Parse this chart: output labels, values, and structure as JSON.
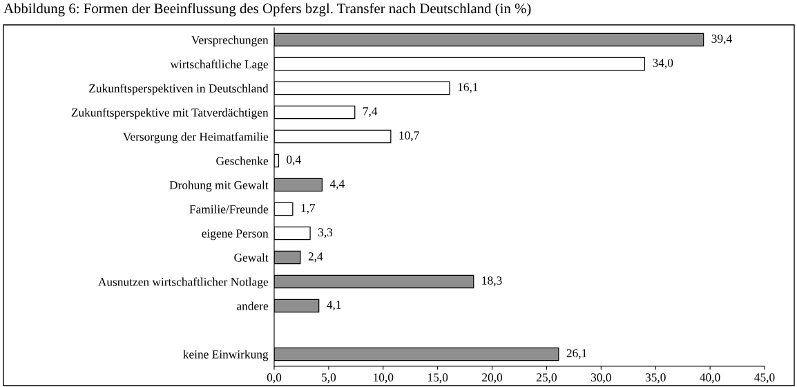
{
  "chart_data": {
    "type": "bar",
    "orientation": "horizontal",
    "title": "Abbildung 6: Formen der Beeinflussung des Opfers bzgl. Transfer nach Deutschland (in %)",
    "categories": [
      "Versprechungen",
      "wirtschaftliche Lage",
      "Zukunftsperspektiven in Deutschland",
      "Zukunftsperspektive mit Tatverdächtigen",
      "Versorgung der Heimatfamilie",
      "Geschenke",
      "Drohung mit Gewalt",
      "Familie/Freunde",
      "eigene Person",
      "Gewalt",
      "Ausnutzen wirtschaftlicher Notlage",
      "andere",
      null,
      "keine Einwirkung"
    ],
    "values": [
      39.4,
      34.0,
      16.1,
      7.4,
      10.7,
      0.4,
      4.4,
      1.7,
      3.3,
      2.4,
      18.3,
      4.1,
      null,
      26.1
    ],
    "value_labels": [
      "39,4",
      "34,0",
      "16,1",
      "7,4",
      "10,7",
      "0,4",
      "4,4",
      "1,7",
      "3,3",
      "2,4",
      "18,3",
      "4,1",
      null,
      "26,1"
    ],
    "colors": [
      "#8f8f8f",
      "#ffffff",
      "#ffffff",
      "#ffffff",
      "#ffffff",
      "#ffffff",
      "#8f8f8f",
      "#ffffff",
      "#ffffff",
      "#8f8f8f",
      "#8f8f8f",
      "#8f8f8f",
      "#ffffff",
      "#8f8f8f"
    ],
    "xlim": [
      0,
      45
    ],
    "xticks": [
      {
        "value": 0,
        "label": "0,0"
      },
      {
        "value": 5,
        "label": "5,0"
      },
      {
        "value": 10,
        "label": "10,0"
      },
      {
        "value": 15,
        "label": "15,0"
      },
      {
        "value": 20,
        "label": "20,0"
      },
      {
        "value": 25,
        "label": "25,0"
      },
      {
        "value": 30,
        "label": "30,0"
      },
      {
        "value": 35,
        "label": "35,0"
      },
      {
        "value": 40,
        "label": "40,0"
      },
      {
        "value": 45,
        "label": "45,0"
      }
    ],
    "grid": false,
    "legend": false
  }
}
